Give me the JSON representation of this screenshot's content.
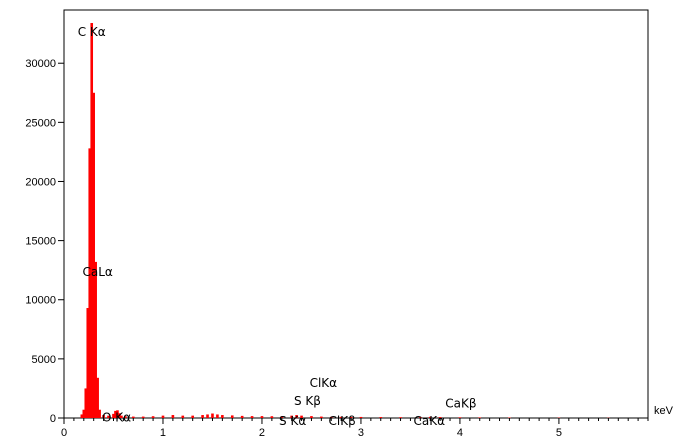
{
  "chart_data": {
    "type": "bar",
    "title": "",
    "xlabel": "keV",
    "ylabel": "",
    "x_unit": "keV",
    "xlim": [
      0,
      5.9
    ],
    "ylim": [
      0,
      34500
    ],
    "x_ticks": [
      {
        "value": 0,
        "label": "0"
      },
      {
        "value": 1,
        "label": "1"
      },
      {
        "value": 2,
        "label": "2"
      },
      {
        "value": 3,
        "label": "3"
      },
      {
        "value": 4,
        "label": "4"
      },
      {
        "value": 5,
        "label": "5"
      }
    ],
    "y_ticks": [
      {
        "value": 0,
        "label": "0"
      },
      {
        "value": 5000,
        "label": "5000"
      },
      {
        "value": 10000,
        "label": "10000"
      },
      {
        "value": 15000,
        "label": "15000"
      },
      {
        "value": 20000,
        "label": "20000"
      },
      {
        "value": 25000,
        "label": "25000"
      },
      {
        "value": 30000,
        "label": "30000"
      }
    ],
    "bar_color": "#ff0000",
    "grid": false,
    "x": [
      0.18,
      0.2,
      0.22,
      0.24,
      0.26,
      0.28,
      0.3,
      0.32,
      0.34,
      0.36,
      0.4,
      0.45,
      0.5,
      0.52,
      0.54,
      0.56,
      0.58,
      0.62,
      0.7,
      0.8,
      0.9,
      1.0,
      1.1,
      1.2,
      1.3,
      1.4,
      1.45,
      1.5,
      1.55,
      1.6,
      1.7,
      1.8,
      1.9,
      2.0,
      2.1,
      2.2,
      2.3,
      2.35,
      2.4,
      2.5,
      2.6,
      2.7,
      2.8,
      2.9,
      3.0,
      3.2,
      3.4,
      3.6,
      3.7,
      3.8,
      4.0,
      4.2,
      4.5,
      5.0,
      5.5
    ],
    "values": [
      300,
      700,
      2500,
      9300,
      22800,
      33400,
      27500,
      13200,
      3400,
      700,
      250,
      200,
      350,
      600,
      650,
      400,
      200,
      150,
      120,
      120,
      150,
      200,
      250,
      200,
      200,
      250,
      300,
      380,
      300,
      250,
      220,
      180,
      160,
      160,
      150,
      150,
      200,
      250,
      200,
      160,
      120,
      100,
      100,
      90,
      90,
      80,
      70,
      80,
      100,
      80,
      60,
      50,
      40,
      30,
      20
    ],
    "peaks": [
      {
        "label": "C Kα",
        "x": 0.28,
        "y": 33400
      },
      {
        "label": "CaLα",
        "x": 0.34,
        "y": 13100
      },
      {
        "label": "O Kα",
        "x": 0.53,
        "y": 800
      },
      {
        "label": "S Kα",
        "x": 2.31,
        "y": 500
      },
      {
        "label": "S Kβ",
        "x": 2.46,
        "y": 2200
      },
      {
        "label": "ClKα",
        "x": 2.62,
        "y": 3700
      },
      {
        "label": "ClKβ",
        "x": 2.81,
        "y": 500
      },
      {
        "label": "CaKα",
        "x": 3.69,
        "y": 500
      },
      {
        "label": "CaKβ",
        "x": 4.01,
        "y": 2000
      }
    ]
  }
}
